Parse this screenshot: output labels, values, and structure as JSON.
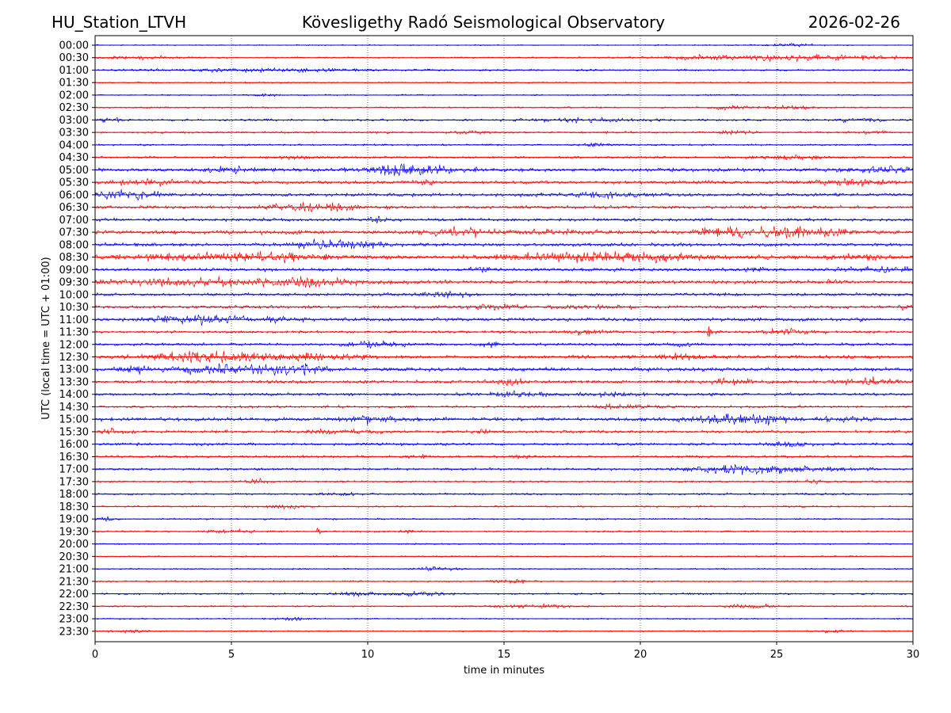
{
  "header": {
    "station": "HU_Station_LTVH",
    "observatory": "Kövesligethy Radó Seismological Observatory",
    "date": "2026-02-26"
  },
  "chart_data": {
    "type": "line",
    "title": "Kövesligethy Radó Seismological Observatory",
    "xlabel": "time in minutes",
    "ylabel": "UTC (local time = UTC + 01:00)",
    "xlim": [
      0,
      30
    ],
    "xticks": [
      "0",
      "5",
      "10",
      "15",
      "20",
      "25",
      "30"
    ],
    "grid": "vertical dotted at 5, 10, 15, 20, 25",
    "colors": {
      "even_rows": "#0000ff",
      "odd_rows": "#ff0000",
      "axes": "#000000",
      "grid": "#555555"
    },
    "rows": [
      {
        "label": "00:00",
        "noise": 0.5,
        "bursts": [
          [
            25.5,
            0.8,
            1.0
          ]
        ]
      },
      {
        "label": "00:30",
        "noise": 0.7,
        "bursts": [
          [
            1.5,
            1.0,
            1.2
          ],
          [
            22.5,
            1.5,
            1.5
          ],
          [
            25.5,
            1.5,
            1.8
          ],
          [
            27.5,
            2.0,
            1.4
          ]
        ]
      },
      {
        "label": "01:00",
        "noise": 0.8,
        "bursts": [
          [
            6.5,
            2.5,
            1.3
          ]
        ]
      },
      {
        "label": "01:30",
        "noise": 0.6,
        "bursts": []
      },
      {
        "label": "02:00",
        "noise": 0.6,
        "bursts": [
          [
            6.3,
            0.3,
            1.3
          ]
        ]
      },
      {
        "label": "02:30",
        "noise": 0.7,
        "bursts": [
          [
            23.2,
            0.5,
            2.0
          ],
          [
            25.5,
            0.6,
            1.5
          ]
        ]
      },
      {
        "label": "03:00",
        "noise": 1.0,
        "bursts": [
          [
            0.5,
            0.3,
            1.8
          ],
          [
            18,
            1.5,
            1.5
          ],
          [
            28,
            0.6,
            1.5
          ]
        ]
      },
      {
        "label": "03:30",
        "noise": 0.9,
        "bursts": [
          [
            13.8,
            0.4,
            1.4
          ],
          [
            23.5,
            0.4,
            1.5
          ],
          [
            28.5,
            0.4,
            1.5
          ]
        ]
      },
      {
        "label": "04:00",
        "noise": 0.8,
        "bursts": [
          [
            18.5,
            0.4,
            1.6
          ]
        ]
      },
      {
        "label": "04:30",
        "noise": 1.0,
        "bursts": [
          [
            7.2,
            0.5,
            1.6
          ],
          [
            25.5,
            0.8,
            1.6
          ]
        ]
      },
      {
        "label": "05:00",
        "noise": 1.6,
        "bursts": [
          [
            5.2,
            0.6,
            2.6
          ],
          [
            10.9,
            0.6,
            5.5
          ],
          [
            12,
            1.5,
            1.8
          ],
          [
            29,
            1.0,
            2.4
          ]
        ]
      },
      {
        "label": "05:30",
        "noise": 1.5,
        "bursts": [
          [
            1.8,
            1.0,
            1.8
          ],
          [
            12.2,
            0.3,
            1.8
          ],
          [
            27.8,
            1.0,
            2.6
          ]
        ]
      },
      {
        "label": "06:00",
        "noise": 1.5,
        "bursts": [
          [
            0.8,
            1.0,
            3.2
          ],
          [
            18.5,
            1.0,
            1.8
          ]
        ]
      },
      {
        "label": "06:30",
        "noise": 1.5,
        "bursts": [
          [
            7.3,
            1.0,
            1.8
          ],
          [
            8.8,
            0.8,
            2.0
          ]
        ]
      },
      {
        "label": "07:00",
        "noise": 1.4,
        "bursts": [
          [
            10.3,
            0.5,
            2.0
          ]
        ]
      },
      {
        "label": "07:30",
        "noise": 1.8,
        "bursts": [
          [
            13.4,
            0.7,
            2.8
          ],
          [
            16.5,
            1.0,
            1.8
          ],
          [
            23.5,
            1.0,
            4.0
          ],
          [
            25.6,
            0.6,
            4.5
          ],
          [
            27.0,
            0.4,
            3.2
          ]
        ]
      },
      {
        "label": "08:00",
        "noise": 1.6,
        "bursts": [
          [
            8.8,
            1.2,
            3.4
          ]
        ]
      },
      {
        "label": "08:30",
        "noise": 1.7,
        "bursts": [
          [
            4,
            2.5,
            2.2
          ],
          [
            6.5,
            1.0,
            2.6
          ],
          [
            17,
            1.5,
            2.8
          ],
          [
            20,
            1.8,
            2.6
          ],
          [
            27.8,
            1.0,
            2.4
          ]
        ]
      },
      {
        "label": "09:00",
        "noise": 1.5,
        "bursts": [
          [
            14.2,
            0.3,
            2.2
          ],
          [
            24.2,
            0.3,
            2.0
          ],
          [
            29,
            1.0,
            2.2
          ]
        ]
      },
      {
        "label": "09:30",
        "noise": 1.6,
        "bursts": [
          [
            3.5,
            3.5,
            2.4
          ],
          [
            8,
            1.0,
            2.2
          ],
          [
            27,
            0.2,
            2.4
          ]
        ]
      },
      {
        "label": "10:00",
        "noise": 1.4,
        "bursts": [
          [
            13,
            0.6,
            1.8
          ]
        ]
      },
      {
        "label": "10:30",
        "noise": 1.3,
        "bursts": [
          [
            14.5,
            1.0,
            1.8
          ],
          [
            18.5,
            0.8,
            1.6
          ],
          [
            29.8,
            0.2,
            2.0
          ]
        ]
      },
      {
        "label": "11:00",
        "noise": 1.6,
        "bursts": [
          [
            4.3,
            1.0,
            3.4
          ],
          [
            2.5,
            0.6,
            2.2
          ],
          [
            7.0,
            0.4,
            1.8
          ]
        ]
      },
      {
        "label": "11:30",
        "noise": 1.2,
        "bursts": [
          [
            22.5,
            0.08,
            6.0
          ],
          [
            25.5,
            0.6,
            2.4
          ],
          [
            18,
            0.5,
            1.6
          ]
        ]
      },
      {
        "label": "12:00",
        "noise": 1.3,
        "bursts": [
          [
            10.5,
            0.8,
            2.0
          ],
          [
            14.5,
            0.3,
            1.6
          ],
          [
            21.5,
            0.3,
            1.6
          ]
        ]
      },
      {
        "label": "12:30",
        "noise": 1.6,
        "bursts": [
          [
            5.2,
            1.8,
            3.4
          ],
          [
            3.5,
            1.0,
            2.0
          ],
          [
            8.5,
            1.0,
            1.8
          ],
          [
            21.5,
            0.6,
            1.8
          ]
        ]
      },
      {
        "label": "13:00",
        "noise": 1.7,
        "bursts": [
          [
            1.5,
            0.4,
            2.6
          ],
          [
            4.5,
            1.0,
            3.6
          ],
          [
            6.8,
            0.8,
            3.4
          ],
          [
            8.0,
            0.4,
            2.6
          ]
        ]
      },
      {
        "label": "13:30",
        "noise": 1.5,
        "bursts": [
          [
            15.3,
            0.4,
            2.0
          ],
          [
            23.5,
            0.6,
            2.0
          ],
          [
            28.3,
            0.8,
            2.4
          ]
        ]
      },
      {
        "label": "14:00",
        "noise": 1.3,
        "bursts": [
          [
            15.5,
            1.0,
            1.8
          ],
          [
            19,
            0.5,
            1.6
          ]
        ]
      },
      {
        "label": "14:30",
        "noise": 1.1,
        "bursts": [
          [
            19.2,
            0.8,
            2.2
          ]
        ]
      },
      {
        "label": "15:00",
        "noise": 1.6,
        "bursts": [
          [
            10.5,
            0.8,
            2.6
          ],
          [
            22.5,
            1.2,
            2.2
          ],
          [
            24.5,
            0.8,
            3.2
          ],
          [
            27.5,
            0.6,
            2.0
          ]
        ]
      },
      {
        "label": "15:30",
        "noise": 1.3,
        "bursts": [
          [
            0.6,
            0.4,
            2.0
          ],
          [
            9,
            0.8,
            1.8
          ],
          [
            14.2,
            0.2,
            1.8
          ]
        ]
      },
      {
        "label": "16:00",
        "noise": 1.2,
        "bursts": [
          [
            25.5,
            0.6,
            2.2
          ]
        ]
      },
      {
        "label": "16:30",
        "noise": 1.1,
        "bursts": [
          [
            12,
            0.3,
            1.6
          ],
          [
            15.5,
            0.3,
            1.6
          ]
        ]
      },
      {
        "label": "17:00",
        "noise": 1.1,
        "bursts": [
          [
            23.5,
            1.0,
            4.2
          ],
          [
            25.5,
            1.5,
            2.2
          ]
        ]
      },
      {
        "label": "17:30",
        "noise": 0.9,
        "bursts": [
          [
            6,
            0.3,
            1.6
          ],
          [
            26.5,
            0.3,
            1.6
          ]
        ]
      },
      {
        "label": "18:00",
        "noise": 0.9,
        "bursts": [
          [
            9,
            0.4,
            1.5
          ]
        ]
      },
      {
        "label": "18:30",
        "noise": 0.8,
        "bursts": [
          [
            7,
            0.5,
            1.8
          ]
        ]
      },
      {
        "label": "19:00",
        "noise": 0.7,
        "bursts": [
          [
            0.3,
            0.3,
            1.6
          ]
        ]
      },
      {
        "label": "19:30",
        "noise": 0.8,
        "bursts": [
          [
            4.8,
            0.5,
            2.0
          ],
          [
            8.2,
            0.05,
            3.6
          ],
          [
            11.5,
            0.2,
            1.6
          ]
        ]
      },
      {
        "label": "20:00",
        "noise": 0.6,
        "bursts": []
      },
      {
        "label": "20:30",
        "noise": 0.6,
        "bursts": []
      },
      {
        "label": "21:00",
        "noise": 0.6,
        "bursts": [
          [
            12.5,
            0.5,
            1.6
          ]
        ]
      },
      {
        "label": "21:30",
        "noise": 0.7,
        "bursts": [
          [
            15.3,
            0.5,
            1.6
          ]
        ]
      },
      {
        "label": "22:00",
        "noise": 0.8,
        "bursts": [
          [
            9.5,
            0.6,
            1.6
          ],
          [
            12.0,
            0.6,
            2.6
          ]
        ]
      },
      {
        "label": "22:30",
        "noise": 0.7,
        "bursts": [
          [
            16,
            1.0,
            1.4
          ],
          [
            24,
            0.6,
            1.4
          ]
        ]
      },
      {
        "label": "23:00",
        "noise": 0.6,
        "bursts": [
          [
            7.2,
            0.4,
            1.6
          ]
        ]
      },
      {
        "label": "23:30",
        "noise": 0.6,
        "bursts": [
          [
            1.2,
            0.5,
            1.6
          ],
          [
            27,
            0.4,
            1.4
          ]
        ]
      }
    ]
  }
}
